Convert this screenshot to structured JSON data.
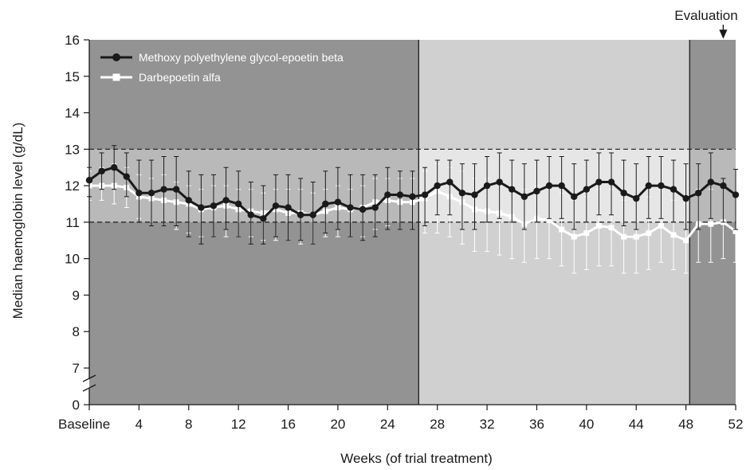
{
  "chart_data": {
    "type": "line",
    "xlabel": "Weeks (of trial treatment)",
    "ylabel": "Median haemoglobin level (g/dL)",
    "x_ticks": [
      {
        "value": 0,
        "label": "Baseline"
      },
      {
        "value": 4,
        "label": "4"
      },
      {
        "value": 8,
        "label": "8"
      },
      {
        "value": 12,
        "label": "12"
      },
      {
        "value": 16,
        "label": "16"
      },
      {
        "value": 20,
        "label": "20"
      },
      {
        "value": 24,
        "label": "24"
      },
      {
        "value": 28,
        "label": "28"
      },
      {
        "value": 32,
        "label": "32"
      },
      {
        "value": 36,
        "label": "36"
      },
      {
        "value": 40,
        "label": "40"
      },
      {
        "value": 44,
        "label": "44"
      },
      {
        "value": 48,
        "label": "48"
      },
      {
        "value": 52,
        "label": "52"
      }
    ],
    "y_ticks": [
      "0",
      "7",
      "8",
      "9",
      "10",
      "11",
      "12",
      "13",
      "14",
      "15",
      "16"
    ],
    "xlim": [
      0,
      52
    ],
    "ylim": [
      6.5,
      16
    ],
    "y_axis_break": {
      "below": 7,
      "zero_tick": 0
    },
    "target_range": {
      "low": 11,
      "high": 13,
      "style": "dashed"
    },
    "phases": [
      {
        "x_start": 0,
        "x_end": 26.5,
        "color": "#939393"
      },
      {
        "x_start": 26.5,
        "x_end": 48.3,
        "color": "#d0d0d0"
      },
      {
        "x_start": 48.3,
        "x_end": 52,
        "color": "#939393"
      }
    ],
    "annotation": {
      "text": "Evaluation",
      "x": 51,
      "arrow": true
    },
    "legend_position": "top-left",
    "x": [
      0,
      1,
      2,
      3,
      4,
      5,
      6,
      7,
      8,
      9,
      10,
      11,
      12,
      13,
      14,
      15,
      16,
      17,
      18,
      19,
      20,
      21,
      22,
      23,
      24,
      25,
      26,
      27,
      28,
      29,
      30,
      31,
      32,
      33,
      34,
      35,
      36,
      37,
      38,
      39,
      40,
      41,
      42,
      43,
      44,
      45,
      46,
      47,
      48,
      49,
      50,
      51,
      52
    ],
    "series": [
      {
        "name": "Methoxy polyethylene glycol-epoetin beta",
        "marker": "circle",
        "color": "#1a1a1a",
        "values": [
          12.15,
          12.4,
          12.5,
          12.25,
          11.8,
          11.8,
          11.9,
          11.9,
          11.6,
          11.4,
          11.45,
          11.6,
          11.5,
          11.2,
          11.1,
          11.45,
          11.4,
          11.2,
          11.2,
          11.5,
          11.55,
          11.4,
          11.35,
          11.4,
          11.75,
          11.75,
          11.7,
          11.75,
          12.0,
          12.1,
          11.8,
          11.75,
          12.0,
          12.1,
          11.9,
          11.7,
          11.85,
          12.0,
          12.0,
          11.7,
          11.9,
          12.1,
          12.1,
          11.8,
          11.65,
          12.0,
          12.0,
          11.9,
          11.65,
          11.8,
          12.1,
          12.0,
          11.75
        ],
        "error_low": [
          11.7,
          11.9,
          11.9,
          11.7,
          11.0,
          10.9,
          10.9,
          10.9,
          10.6,
          10.4,
          10.6,
          10.8,
          10.6,
          10.4,
          10.4,
          10.6,
          10.5,
          10.5,
          10.4,
          10.7,
          10.8,
          10.6,
          10.5,
          10.6,
          10.8,
          10.8,
          10.8,
          10.9,
          11.2,
          11.2,
          10.8,
          10.8,
          11.0,
          11.1,
          11.0,
          10.8,
          11.0,
          11.1,
          11.1,
          10.8,
          11.0,
          11.2,
          11.2,
          10.9,
          10.8,
          11.1,
          11.1,
          11.0,
          10.8,
          10.8,
          11.1,
          11.0,
          10.8
        ],
        "error_high": [
          12.5,
          12.9,
          13.1,
          12.9,
          12.7,
          12.7,
          12.8,
          12.8,
          12.4,
          12.3,
          12.3,
          12.5,
          12.4,
          12.1,
          12.0,
          12.3,
          12.3,
          12.2,
          12.1,
          12.4,
          12.5,
          12.3,
          12.3,
          12.3,
          12.5,
          12.4,
          12.4,
          12.5,
          12.7,
          12.7,
          12.6,
          12.6,
          12.8,
          12.9,
          12.7,
          12.6,
          12.7,
          12.8,
          12.8,
          12.6,
          12.7,
          12.9,
          12.9,
          12.7,
          12.6,
          12.8,
          12.8,
          12.7,
          12.6,
          12.6,
          12.9,
          12.2,
          12.45
        ]
      },
      {
        "name": "Darbepoetin alfa",
        "marker": "square",
        "color": "#ffffff",
        "values": [
          12.0,
          12.0,
          12.0,
          11.95,
          11.7,
          11.65,
          11.6,
          11.55,
          11.5,
          11.35,
          11.4,
          11.45,
          11.35,
          11.3,
          11.25,
          11.35,
          11.25,
          11.25,
          11.2,
          11.3,
          11.4,
          11.35,
          11.4,
          11.55,
          11.6,
          11.55,
          11.55,
          11.65,
          11.85,
          11.7,
          11.55,
          11.35,
          11.3,
          11.25,
          11.15,
          10.95,
          11.1,
          11.05,
          10.8,
          10.6,
          10.7,
          10.9,
          10.85,
          10.6,
          10.6,
          10.7,
          10.9,
          10.65,
          10.5,
          10.95,
          10.95,
          11.0,
          10.75
        ],
        "error_low": [
          11.6,
          11.6,
          11.5,
          11.4,
          11.1,
          10.9,
          10.9,
          10.8,
          10.7,
          10.6,
          10.6,
          10.6,
          10.6,
          10.6,
          10.5,
          10.5,
          10.5,
          10.4,
          10.4,
          10.6,
          10.6,
          10.6,
          10.6,
          10.8,
          10.9,
          10.8,
          10.8,
          10.7,
          10.7,
          10.6,
          10.4,
          10.2,
          10.2,
          10.1,
          10.0,
          9.9,
          10.0,
          10.0,
          9.8,
          9.6,
          9.7,
          9.8,
          9.8,
          9.6,
          9.6,
          9.7,
          9.9,
          9.7,
          9.6,
          9.9,
          9.9,
          10.0,
          9.9
        ],
        "error_high": [
          12.4,
          12.5,
          12.6,
          12.5,
          12.3,
          12.2,
          12.3,
          12.1,
          12.0,
          11.9,
          12.0,
          12.0,
          11.9,
          11.9,
          11.8,
          11.9,
          11.9,
          11.9,
          11.8,
          11.9,
          12.0,
          11.9,
          12.0,
          12.2,
          12.2,
          12.2,
          12.2,
          12.4,
          12.6,
          12.5,
          12.4,
          12.2,
          12.2,
          12.1,
          12.0,
          11.9,
          12.0,
          12.0,
          11.8,
          11.6,
          11.7,
          11.9,
          11.9,
          11.6,
          11.6,
          11.7,
          11.9,
          11.6,
          11.5,
          11.9,
          11.9,
          12.0,
          11.7
        ]
      }
    ]
  }
}
